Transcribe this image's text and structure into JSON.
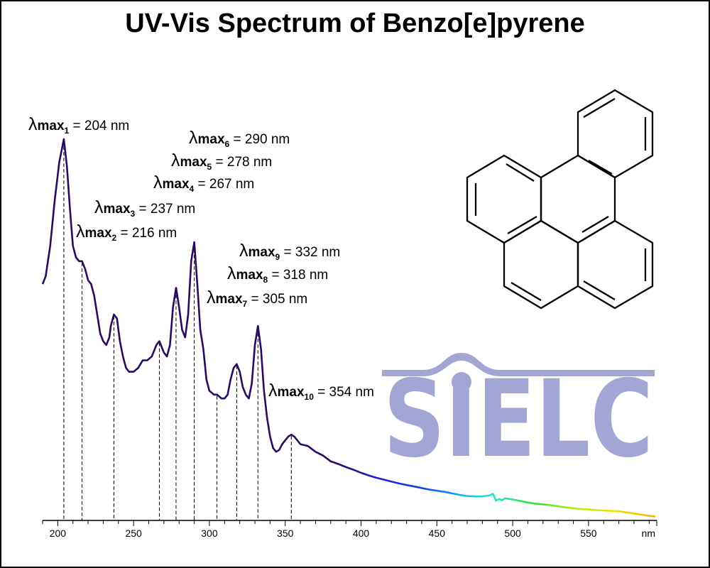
{
  "chart_data": {
    "type": "line",
    "title": "UV-Vis Spectrum of Benzo[e]pyrene",
    "x_unit": "nm",
    "xlim": [
      190,
      595
    ],
    "ylim": [
      0,
      1
    ],
    "x_ticks": [
      200,
      250,
      300,
      350,
      400,
      450,
      500,
      550
    ],
    "grid": false,
    "line_color": "#2a0a5e",
    "spectrum": [
      [
        190,
        0.62
      ],
      [
        192,
        0.64
      ],
      [
        195,
        0.72
      ],
      [
        198,
        0.84
      ],
      [
        201,
        0.94
      ],
      [
        204,
        1.0
      ],
      [
        206,
        0.93
      ],
      [
        208,
        0.82
      ],
      [
        210,
        0.72
      ],
      [
        212,
        0.69
      ],
      [
        214,
        0.68
      ],
      [
        216,
        0.68
      ],
      [
        218,
        0.66
      ],
      [
        220,
        0.63
      ],
      [
        222,
        0.62
      ],
      [
        224,
        0.59
      ],
      [
        226,
        0.54
      ],
      [
        228,
        0.49
      ],
      [
        230,
        0.47
      ],
      [
        232,
        0.46
      ],
      [
        234,
        0.48
      ],
      [
        235,
        0.51
      ],
      [
        237,
        0.54
      ],
      [
        239,
        0.53
      ],
      [
        241,
        0.47
      ],
      [
        243,
        0.43
      ],
      [
        245,
        0.4
      ],
      [
        247,
        0.39
      ],
      [
        250,
        0.39
      ],
      [
        253,
        0.4
      ],
      [
        256,
        0.42
      ],
      [
        259,
        0.42
      ],
      [
        262,
        0.43
      ],
      [
        265,
        0.46
      ],
      [
        267,
        0.47
      ],
      [
        270,
        0.44
      ],
      [
        272,
        0.43
      ],
      [
        274,
        0.46
      ],
      [
        276,
        0.56
      ],
      [
        278,
        0.61
      ],
      [
        280,
        0.56
      ],
      [
        282,
        0.5
      ],
      [
        284,
        0.48
      ],
      [
        286,
        0.54
      ],
      [
        288,
        0.68
      ],
      [
        290,
        0.73
      ],
      [
        292,
        0.62
      ],
      [
        294,
        0.5
      ],
      [
        296,
        0.45
      ],
      [
        298,
        0.37
      ],
      [
        300,
        0.34
      ],
      [
        303,
        0.33
      ],
      [
        305,
        0.33
      ],
      [
        308,
        0.32
      ],
      [
        310,
        0.32
      ],
      [
        312,
        0.33
      ],
      [
        314,
        0.37
      ],
      [
        316,
        0.4
      ],
      [
        318,
        0.41
      ],
      [
        320,
        0.39
      ],
      [
        322,
        0.35
      ],
      [
        324,
        0.33
      ],
      [
        326,
        0.32
      ],
      [
        328,
        0.36
      ],
      [
        330,
        0.46
      ],
      [
        332,
        0.51
      ],
      [
        334,
        0.45
      ],
      [
        336,
        0.34
      ],
      [
        338,
        0.27
      ],
      [
        340,
        0.22
      ],
      [
        342,
        0.19
      ],
      [
        344,
        0.18
      ],
      [
        346,
        0.185
      ],
      [
        348,
        0.2
      ],
      [
        350,
        0.21
      ],
      [
        352,
        0.22
      ],
      [
        354,
        0.225
      ],
      [
        356,
        0.22
      ],
      [
        358,
        0.21
      ],
      [
        360,
        0.2
      ],
      [
        365,
        0.195
      ],
      [
        370,
        0.18
      ],
      [
        375,
        0.17
      ],
      [
        380,
        0.155
      ],
      [
        385,
        0.148
      ],
      [
        390,
        0.14
      ],
      [
        395,
        0.133
      ],
      [
        400,
        0.125
      ],
      [
        405,
        0.118
      ],
      [
        410,
        0.112
      ],
      [
        415,
        0.107
      ],
      [
        420,
        0.102
      ],
      [
        425,
        0.097
      ],
      [
        430,
        0.093
      ],
      [
        435,
        0.089
      ],
      [
        440,
        0.085
      ],
      [
        445,
        0.081
      ],
      [
        450,
        0.078
      ],
      [
        455,
        0.075
      ],
      [
        460,
        0.071
      ],
      [
        465,
        0.067
      ],
      [
        470,
        0.064
      ],
      [
        475,
        0.063
      ],
      [
        480,
        0.063
      ],
      [
        485,
        0.066
      ],
      [
        487,
        0.07
      ],
      [
        489,
        0.052
      ],
      [
        491,
        0.056
      ],
      [
        493,
        0.053
      ],
      [
        495,
        0.058
      ],
      [
        500,
        0.055
      ],
      [
        505,
        0.051
      ],
      [
        510,
        0.047
      ],
      [
        515,
        0.044
      ],
      [
        520,
        0.042
      ],
      [
        525,
        0.04
      ],
      [
        530,
        0.037
      ],
      [
        535,
        0.034
      ],
      [
        540,
        0.032
      ],
      [
        545,
        0.03
      ],
      [
        550,
        0.029
      ],
      [
        555,
        0.027
      ],
      [
        560,
        0.026
      ],
      [
        565,
        0.025
      ],
      [
        570,
        0.024
      ],
      [
        575,
        0.021
      ],
      [
        580,
        0.018
      ],
      [
        585,
        0.015
      ],
      [
        590,
        0.012
      ],
      [
        594,
        0.01
      ]
    ],
    "peaks": [
      {
        "sub": "1",
        "wavelength": 204,
        "text": " = 204 nm"
      },
      {
        "sub": "2",
        "wavelength": 216,
        "text": " = 216 nm"
      },
      {
        "sub": "3",
        "wavelength": 237,
        "text": " = 237 nm"
      },
      {
        "sub": "4",
        "wavelength": 267,
        "text": " = 267 nm"
      },
      {
        "sub": "5",
        "wavelength": 278,
        "text": " = 278 nm"
      },
      {
        "sub": "6",
        "wavelength": 290,
        "text": " = 290 nm"
      },
      {
        "sub": "7",
        "wavelength": 305,
        "text": " = 305 nm"
      },
      {
        "sub": "8",
        "wavelength": 318,
        "text": " = 318 nm"
      },
      {
        "sub": "9",
        "wavelength": 332,
        "text": " = 332 nm"
      },
      {
        "sub": "10",
        "wavelength": 354,
        "text": " = 354 nm"
      }
    ],
    "peak_symbol": "λ",
    "peak_prefix": "max"
  },
  "watermark": {
    "text": "SIELC",
    "color": "#a3a6d4"
  },
  "molecule": {
    "icon": "benzo-e-pyrene-structure-icon"
  }
}
